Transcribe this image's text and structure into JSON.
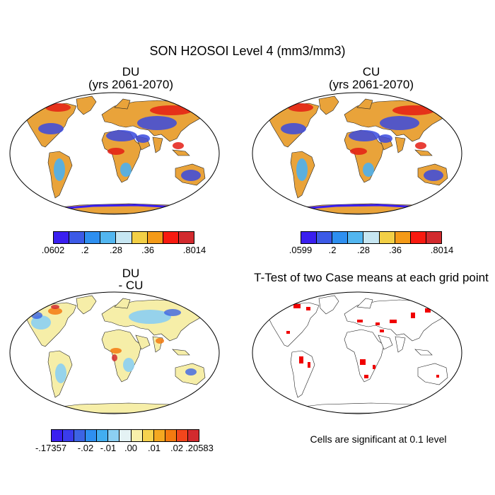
{
  "title": "SON H2OSOI Level 4 (mm3/mm3)",
  "panels": {
    "du": {
      "title": "DU",
      "subtitle": "(yrs 2061-2070)"
    },
    "cu": {
      "title": "CU",
      "subtitle": "(yrs 2061-2070)"
    },
    "diff": {
      "title": "DU",
      "subtitle": "- CU"
    },
    "ttest": {
      "title": "T-Test of two Case means at each grid point"
    }
  },
  "colorbars": {
    "du": {
      "colors": [
        "#3a1ff0",
        "#3c5ae6",
        "#2e8ff0",
        "#52b6f0",
        "#c6e6f2",
        "#f2cf46",
        "#f49a18",
        "#f81a10",
        "#d22a2e"
      ],
      "labels": [
        ".0602",
        ".2",
        ".28",
        ".36",
        ".8014"
      ]
    },
    "cu": {
      "colors": [
        "#3a1ff0",
        "#3c5ae6",
        "#2e8ff0",
        "#52b6f0",
        "#c6e6f2",
        "#f2cf46",
        "#f49a18",
        "#f81a10",
        "#d22a2e"
      ],
      "labels": [
        ".0599",
        ".2",
        ".28",
        ".36",
        ".8014"
      ]
    },
    "diff": {
      "colors": [
        "#3a1ff0",
        "#3a3cec",
        "#3c64e4",
        "#2e8ff0",
        "#42aef0",
        "#8ccff2",
        "#e4f2f4",
        "#f8f0aa",
        "#f6d24e",
        "#f4a820",
        "#f47a10",
        "#f2461c",
        "#d22a2e"
      ],
      "labels": [
        "-.17357",
        "-.02",
        "-.01",
        ".00",
        ".01",
        ".02",
        ".20583"
      ]
    }
  },
  "note": "Cells are significant at 0.1 level",
  "icons": {
    "map_du": "world-map-icon",
    "map_cu": "world-map-icon",
    "map_diff": "world-map-icon",
    "map_ttest": "world-map-icon"
  }
}
